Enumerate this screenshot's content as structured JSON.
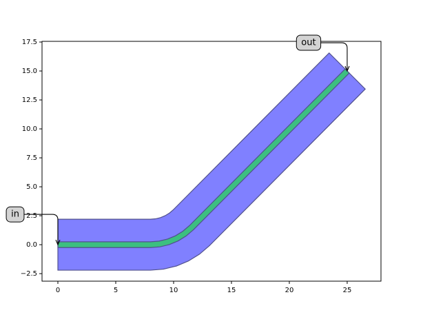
{
  "chart_data": {
    "type": "polygon",
    "xlim": [
      -1.37,
      27.92
    ],
    "ylim": [
      -3.15,
      17.56
    ],
    "xticks": [
      0,
      5,
      10,
      15,
      20,
      25
    ],
    "yticks": [
      {
        "value": -2.5,
        "label": "−2.5"
      },
      {
        "value": 0,
        "label": "0.0"
      },
      {
        "value": 2.5,
        "label": "2.5"
      },
      {
        "value": 5,
        "label": "5.0"
      },
      {
        "value": 7.5,
        "label": "7.5"
      },
      {
        "value": 10,
        "label": "10.0"
      },
      {
        "value": 12.5,
        "label": "12.5"
      },
      {
        "value": 15,
        "label": "15.0"
      },
      {
        "value": 17.5,
        "label": "17.5"
      }
    ],
    "series": [
      {
        "color": "#8080ff",
        "x": [
          0,
          8,
          8.438,
          8.865,
          9.271,
          9.646,
          9.98,
          23.44,
          26.56,
          13.091,
          12.232,
          11.269,
          10.225,
          9.126,
          8,
          0
        ],
        "y": [
          2.2,
          2.2,
          2.234,
          2.337,
          2.505,
          2.735,
          3.02,
          16.56,
          13.44,
          -0.091,
          -0.825,
          -1.415,
          -1.848,
          -2.111,
          -2.2,
          -2.2
        ]
      },
      {
        "color": "#3cbf80",
        "x": [
          0,
          8,
          8.743,
          9.468,
          10.157,
          10.792,
          11.359,
          24.823,
          25.177,
          11.712,
          11.086,
          10.384,
          9.622,
          8.821,
          8,
          0
        ],
        "y": [
          0.25,
          0.25,
          0.308,
          0.482,
          0.768,
          1.157,
          1.641,
          15.177,
          14.823,
          1.288,
          0.753,
          0.322,
          0.007,
          -0.185,
          -0.25,
          -0.25
        ]
      }
    ],
    "annotations": [
      {
        "text": "in",
        "x": 0,
        "y": 0
      },
      {
        "text": "out",
        "x": 25,
        "y": 15
      }
    ]
  }
}
